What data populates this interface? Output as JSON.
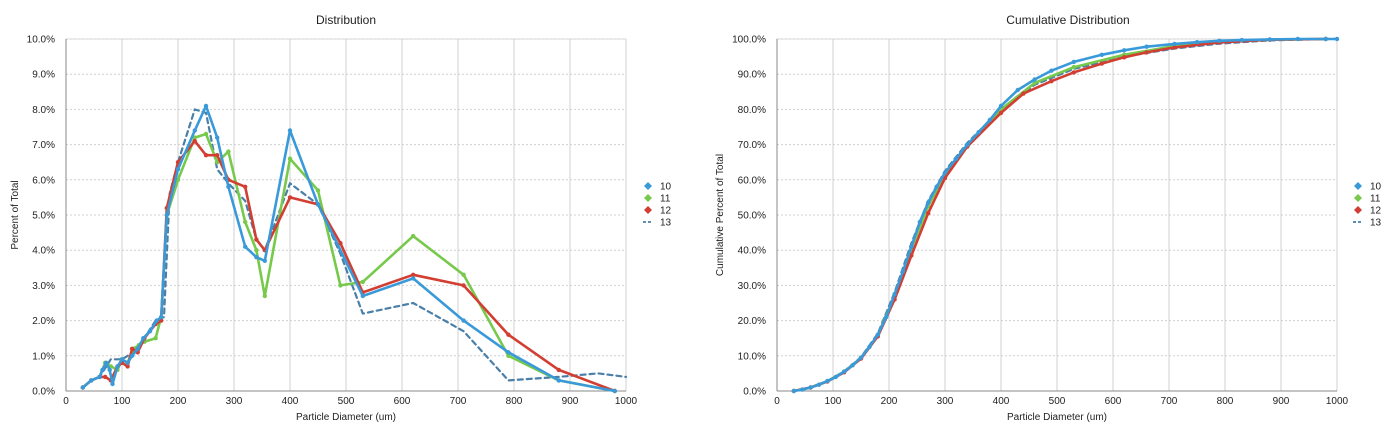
{
  "chart_data": [
    {
      "type": "line",
      "title": "Distribution",
      "xlabel": "Particle Diameter (um)",
      "ylabel": "Percent of Total",
      "xlim": [
        0,
        1000
      ],
      "ylim": [
        0,
        10
      ],
      "xticks": [
        0,
        100,
        200,
        300,
        400,
        500,
        600,
        700,
        800,
        900,
        1000
      ],
      "yticks": [
        "0.0%",
        "1.0%",
        "2.0%",
        "3.0%",
        "4.0%",
        "5.0%",
        "6.0%",
        "7.0%",
        "8.0%",
        "9.0%",
        "10.0%"
      ],
      "grid": true,
      "legend": "right",
      "series": [
        {
          "name": "10",
          "color": "#3a9ad9",
          "style": "solid",
          "x": [
            30,
            45,
            60,
            65,
            72,
            78,
            83,
            92,
            100,
            110,
            118,
            128,
            138,
            150,
            162,
            170,
            180,
            200,
            230,
            250,
            270,
            290,
            320,
            340,
            355,
            400,
            450,
            530,
            620,
            710,
            790,
            880,
            980
          ],
          "y": [
            0.1,
            0.3,
            0.4,
            0.6,
            0.8,
            0.6,
            0.2,
            0.7,
            0.9,
            0.8,
            1.0,
            1.2,
            1.5,
            1.7,
            2.0,
            2.1,
            5.0,
            6.3,
            7.4,
            8.1,
            7.2,
            5.8,
            4.1,
            3.8,
            3.7,
            7.4,
            5.3,
            2.7,
            3.2,
            2.0,
            1.1,
            0.3,
            0.0
          ]
        },
        {
          "name": "11",
          "color": "#77c94b",
          "style": "solid",
          "x": [
            30,
            45,
            60,
            70,
            80,
            92,
            100,
            110,
            120,
            130,
            140,
            160,
            170,
            180,
            200,
            230,
            250,
            270,
            290,
            320,
            340,
            355,
            400,
            450,
            490,
            530,
            620,
            710,
            790,
            880,
            980
          ],
          "y": [
            0.1,
            0.3,
            0.4,
            0.8,
            0.7,
            0.6,
            0.9,
            0.8,
            1.2,
            1.3,
            1.4,
            1.5,
            2.1,
            5.0,
            6.0,
            7.2,
            7.3,
            6.5,
            6.8,
            4.8,
            4.0,
            2.7,
            6.6,
            5.7,
            3.0,
            3.1,
            4.4,
            3.3,
            1.0,
            0.3,
            0.0
          ]
        },
        {
          "name": "12",
          "color": "#d23f32",
          "style": "solid",
          "x": [
            30,
            45,
            60,
            70,
            80,
            92,
            100,
            110,
            118,
            128,
            140,
            160,
            170,
            180,
            200,
            230,
            250,
            270,
            290,
            320,
            340,
            355,
            400,
            450,
            490,
            530,
            620,
            710,
            790,
            880,
            980
          ],
          "y": [
            0.1,
            0.3,
            0.4,
            0.4,
            0.3,
            0.7,
            0.8,
            0.7,
            1.2,
            1.1,
            1.5,
            1.9,
            2.0,
            5.2,
            6.5,
            7.1,
            6.7,
            6.7,
            6.0,
            5.8,
            4.3,
            4.0,
            5.5,
            5.3,
            4.2,
            2.8,
            3.3,
            3.0,
            1.6,
            0.6,
            0.0
          ]
        },
        {
          "name": "13",
          "color": "#4a7fa8",
          "style": "dashed",
          "x": [
            30,
            45,
            60,
            80,
            100,
            120,
            140,
            160,
            175,
            185,
            200,
            230,
            250,
            270,
            290,
            320,
            340,
            355,
            400,
            450,
            490,
            530,
            620,
            710,
            790,
            880,
            950,
            1000
          ],
          "y": [
            0.1,
            0.3,
            0.4,
            0.9,
            0.9,
            1.1,
            1.5,
            2.0,
            2.1,
            5.6,
            6.5,
            8.0,
            7.9,
            6.3,
            5.9,
            5.4,
            4.3,
            4.0,
            5.9,
            5.3,
            3.9,
            2.2,
            2.5,
            1.7,
            0.3,
            0.4,
            0.5,
            0.4
          ]
        }
      ]
    },
    {
      "type": "line",
      "title": "Cumulative Distribution",
      "xlabel": "Particle Diameter (um)",
      "ylabel": "Cumulative Percent of Total",
      "xlim": [
        0,
        1000
      ],
      "ylim": [
        0,
        100
      ],
      "xticks": [
        0,
        100,
        200,
        300,
        400,
        500,
        600,
        700,
        800,
        900,
        1000
      ],
      "yticks": [
        "0.0%",
        "10.0%",
        "20.0%",
        "30.0%",
        "40.0%",
        "50.0%",
        "60.0%",
        "70.0%",
        "80.0%",
        "90.0%",
        "100.0%"
      ],
      "grid": true,
      "legend": "right",
      "series": [
        {
          "name": "10",
          "color": "#3a9ad9",
          "style": "solid",
          "x": [
            30,
            45,
            60,
            75,
            90,
            105,
            120,
            135,
            150,
            165,
            180,
            195,
            210,
            225,
            240,
            255,
            270,
            285,
            300,
            320,
            340,
            360,
            380,
            400,
            430,
            460,
            490,
            530,
            580,
            620,
            660,
            710,
            750,
            790,
            830,
            880,
            930,
            980,
            1000
          ],
          "y": [
            0,
            0.4,
            1.0,
            1.8,
            2.8,
            4.0,
            5.5,
            7.3,
            9.5,
            12.5,
            16.0,
            21.0,
            27.5,
            34.0,
            41.0,
            48.0,
            53.5,
            58.0,
            62.0,
            66.0,
            70.0,
            73.5,
            77.0,
            81.0,
            85.5,
            88.5,
            91.0,
            93.5,
            95.5,
            96.8,
            97.8,
            98.6,
            99.1,
            99.5,
            99.7,
            99.9,
            100,
            100,
            100
          ]
        },
        {
          "name": "11",
          "color": "#77c94b",
          "style": "solid",
          "x": [
            30,
            60,
            90,
            120,
            150,
            180,
            210,
            240,
            270,
            300,
            340,
            400,
            460,
            530,
            620,
            710,
            790,
            880,
            980
          ],
          "y": [
            0,
            1.0,
            2.8,
            5.5,
            9.4,
            15.8,
            27.0,
            40.5,
            52.5,
            61.5,
            69.5,
            80.0,
            87.5,
            92.0,
            95.5,
            98.0,
            99.3,
            99.8,
            100
          ]
        },
        {
          "name": "12",
          "color": "#d23f32",
          "style": "solid",
          "x": [
            30,
            60,
            90,
            120,
            150,
            180,
            210,
            240,
            270,
            300,
            340,
            400,
            440,
            490,
            530,
            580,
            620,
            660,
            710,
            790,
            880,
            980
          ],
          "y": [
            0,
            1.0,
            2.7,
            5.3,
            9.2,
            15.5,
            26.0,
            38.5,
            50.5,
            60.5,
            69.5,
            79.0,
            84.5,
            88.0,
            90.5,
            93.0,
            94.8,
            96.2,
            97.6,
            99.0,
            99.8,
            100
          ]
        },
        {
          "name": "13",
          "color": "#4a7fa8",
          "style": "dashed",
          "x": [
            30,
            60,
            90,
            120,
            150,
            180,
            210,
            240,
            270,
            300,
            340,
            400,
            460,
            530,
            620,
            710,
            790,
            880,
            980,
            1000
          ],
          "y": [
            0,
            1.0,
            2.8,
            5.6,
            9.6,
            16.3,
            28.0,
            42.0,
            54.0,
            62.5,
            70.5,
            80.0,
            87.0,
            91.5,
            95.0,
            97.3,
            98.7,
            99.6,
            100,
            100
          ]
        }
      ]
    }
  ]
}
